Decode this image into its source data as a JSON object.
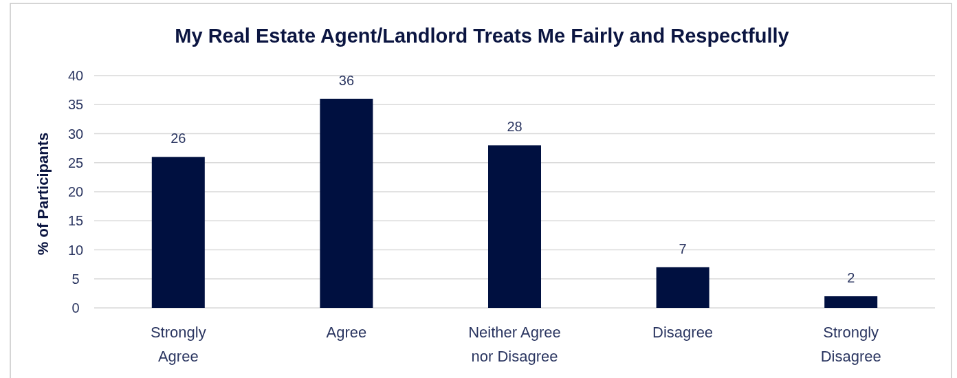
{
  "chart_data": {
    "type": "bar",
    "title": "My Real Estate Agent/Landlord Treats Me Fairly and Respectfully",
    "ylabel": "% of Participants",
    "categories": [
      "Strongly Agree",
      "Agree",
      "Neither Agree nor Disagree",
      "Disagree",
      "Strongly Disagree"
    ],
    "values": [
      26,
      36,
      28,
      7,
      2
    ],
    "color": "#001040",
    "ylim": [
      0,
      40
    ],
    "yticks": [
      0,
      5,
      10,
      15,
      20,
      25,
      30,
      35,
      40
    ],
    "grid": "y",
    "data_labels": true
  }
}
